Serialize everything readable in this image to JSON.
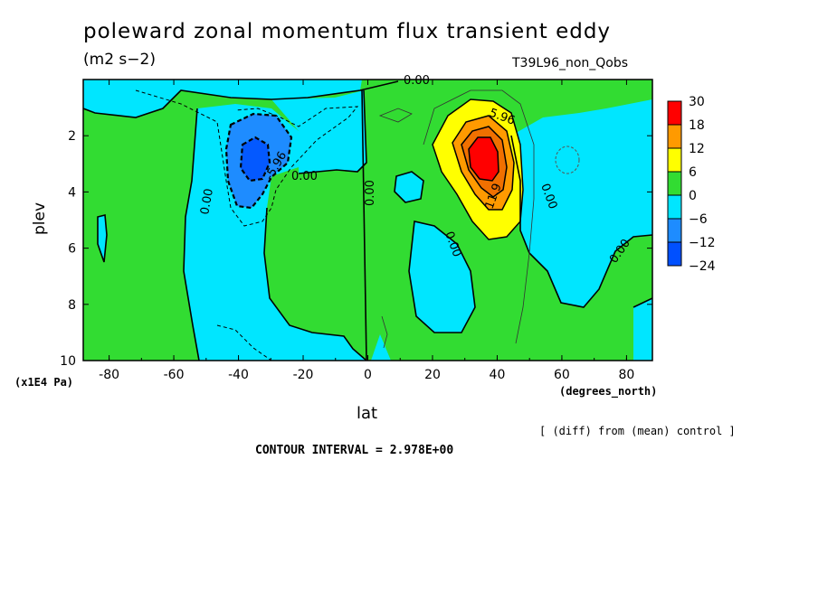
{
  "chart_data": {
    "type": "heatmap",
    "title": "poleward zonal momentum flux transient eddy",
    "units": "(m2 s−2)",
    "run_label": "T39L96_non_Qobs",
    "xlabel": "lat",
    "xunit": "(degrees_north)",
    "ylabel": "plev",
    "yunit": "(x1E4 Pa)",
    "xlim": [
      -88,
      88
    ],
    "ylim": [
      10,
      0
    ],
    "x_ticks": [
      -80,
      -60,
      -40,
      -20,
      0,
      20,
      40,
      60,
      80
    ],
    "y_ticks": [
      2,
      4,
      6,
      8,
      10
    ],
    "diff_note": "[ (diff) from (mean) control ]",
    "contour_interval_text": "CONTOUR INTERVAL = 2.978E+00",
    "colorbar": {
      "levels": [
        30,
        18,
        12,
        6,
        0,
        -6,
        -12,
        -24
      ],
      "colors": [
        "#ff0000",
        "#ff9a00",
        "#ffff00",
        "#32dc32",
        "#00e6ff",
        "#1e8cff",
        "#0050ff"
      ]
    },
    "contour_labels": [
      "0.00",
      "0.00",
      "0.00",
      "0.00",
      "0.00",
      "0.00",
      "0.00",
      "0.00",
      "-5.96",
      "5.96",
      "11.9"
    ],
    "features": [
      {
        "kind": "positive maximum",
        "lat": 36,
        "plev": 3.0,
        "value": 30
      },
      {
        "kind": "negative minimum",
        "lat": -35,
        "plev": 3.0,
        "value": -14
      }
    ]
  }
}
